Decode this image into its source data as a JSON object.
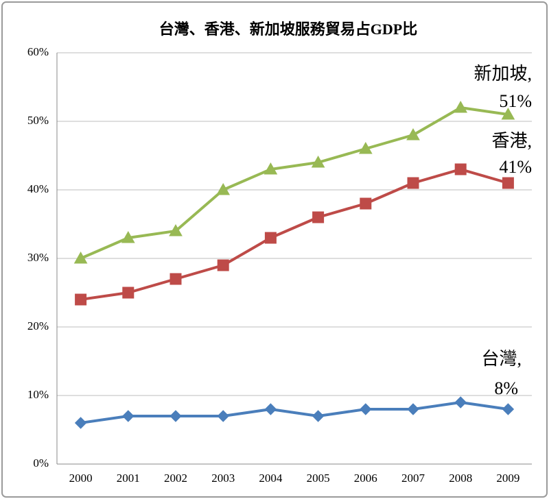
{
  "chart_data": {
    "type": "line",
    "title": "台灣、香港、新加坡服務貿易占GDP比",
    "categories": [
      "2000",
      "2001",
      "2002",
      "2003",
      "2004",
      "2005",
      "2006",
      "2007",
      "2008",
      "2009"
    ],
    "series": [
      {
        "name": "台灣",
        "color": "#4a7ebb",
        "marker": "diamond",
        "values": [
          6,
          7,
          7,
          7,
          8,
          7,
          8,
          8,
          9,
          8
        ]
      },
      {
        "name": "香港",
        "color": "#be4b48",
        "marker": "square",
        "values": [
          24,
          25,
          27,
          29,
          33,
          36,
          38,
          41,
          43,
          41
        ]
      },
      {
        "name": "新加坡",
        "color": "#98b954",
        "marker": "triangle",
        "values": [
          30,
          33,
          34,
          40,
          43,
          44,
          46,
          48,
          52,
          51
        ]
      }
    ],
    "ylim": [
      0,
      60
    ],
    "yticks": [
      {
        "value": 0,
        "label": "0%"
      },
      {
        "value": 10,
        "label": "10%"
      },
      {
        "value": 20,
        "label": "20%"
      },
      {
        "value": 30,
        "label": "30%"
      },
      {
        "value": 40,
        "label": "40%"
      },
      {
        "value": 50,
        "label": "50%"
      },
      {
        "value": 60,
        "label": "60%"
      }
    ],
    "grid": true,
    "annotations": [
      {
        "lines": [
          "新加坡,",
          "51%"
        ]
      },
      {
        "lines": [
          "香港,",
          "41%"
        ]
      },
      {
        "lines": [
          "台灣,",
          "8%"
        ]
      }
    ]
  }
}
